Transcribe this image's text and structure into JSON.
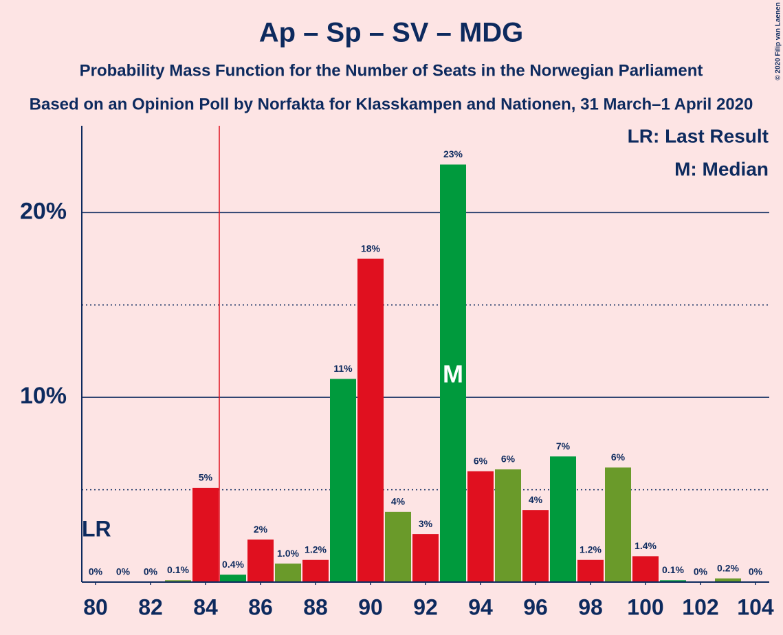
{
  "chart_data": {
    "type": "bar",
    "title": "Ap – Sp – SV – MDG",
    "subtitle": "Probability Mass Function for the Number of Seats in the Norwegian Parliament",
    "subtitle2": "Based on an Opinion Poll by Norfakta for Klasskampen and Nationen, 31 March–1 April 2020",
    "copyright": "© 2020 Filip van Laenen",
    "x": [
      80,
      81,
      82,
      83,
      84,
      85,
      86,
      87,
      88,
      89,
      90,
      91,
      92,
      93,
      94,
      95,
      96,
      97,
      98,
      99,
      100,
      101,
      102,
      103,
      104
    ],
    "values": [
      0,
      0,
      0,
      0.1,
      5.1,
      0.4,
      2.3,
      1.0,
      1.2,
      11.0,
      17.5,
      3.8,
      2.6,
      22.6,
      6.0,
      6.1,
      3.9,
      6.8,
      1.2,
      6.2,
      1.4,
      0.1,
      0,
      0.2,
      0
    ],
    "value_labels": [
      "0%",
      "0%",
      "0%",
      "0.1%",
      "5%",
      "0.4%",
      "2%",
      "1.0%",
      "1.2%",
      "11%",
      "18%",
      "4%",
      "3%",
      "23%",
      "6%",
      "6%",
      "4%",
      "7%",
      "1.2%",
      "6%",
      "1.4%",
      "0.1%",
      "0%",
      "0.2%",
      "0%"
    ],
    "colors": [
      "#e0101f",
      "#009a3d",
      "#e0101f",
      "#6a9a2a"
    ],
    "xlim": [
      79.5,
      104.5
    ],
    "xticks": [
      80,
      82,
      84,
      86,
      88,
      90,
      92,
      94,
      96,
      98,
      100,
      102,
      104
    ],
    "ylim": [
      0,
      24.7
    ],
    "yticks": [
      {
        "value": 10,
        "label": "10%"
      },
      {
        "value": 20,
        "label": "20%"
      }
    ],
    "yminor": [
      5,
      15
    ],
    "last_result": 85,
    "last_result_label": "LR",
    "median": 93,
    "median_label": "M",
    "legend": [
      "LR: Last Result",
      "M: Median"
    ]
  }
}
